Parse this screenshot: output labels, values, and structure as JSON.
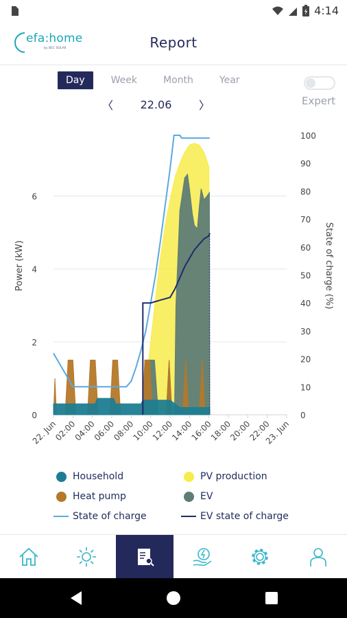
{
  "status": {
    "time": "4:14"
  },
  "header": {
    "logo_text": "efa:home",
    "logo_sub": "by BEC SOLAR",
    "title": "Report"
  },
  "tabs": [
    {
      "label": "Day",
      "active": true
    },
    {
      "label": "Week",
      "active": false
    },
    {
      "label": "Month",
      "active": false
    },
    {
      "label": "Year",
      "active": false
    }
  ],
  "expert": {
    "label": "Expert",
    "enabled": false
  },
  "date_nav": {
    "date": "22.06",
    "prev": "〈",
    "next": "〉"
  },
  "chart_data": {
    "type": "area",
    "ylabel_left": "Power (kW)",
    "ylabel_right": "State of charge (%)",
    "yticks_left": [
      "0",
      "2",
      "4",
      "6"
    ],
    "yticks_right": [
      "0",
      "10",
      "20",
      "30",
      "40",
      "50",
      "60",
      "70",
      "80",
      "90",
      "100"
    ],
    "xticks": [
      "22. Jun",
      "02:00",
      "04:00",
      "06:00",
      "08:00",
      "10:00",
      "12:00",
      "14:00",
      "16:00",
      "18:00",
      "20:00",
      "22:00",
      "23. Jun"
    ],
    "ylim_left": [
      0,
      7.8
    ],
    "ylim_right": [
      0,
      100
    ],
    "xlim_hours": [
      0,
      24
    ],
    "series": [
      {
        "name": "PV production",
        "key": "pv",
        "color": "#f7ec4b",
        "axis": "left",
        "points": [
          [
            9,
            0
          ],
          [
            9.5,
            0.8
          ],
          [
            10,
            2
          ],
          [
            10.5,
            3.2
          ],
          [
            11,
            4.3
          ],
          [
            11.5,
            5.2
          ],
          [
            12,
            5.9
          ],
          [
            12.5,
            6.5
          ],
          [
            13,
            6.9
          ],
          [
            13.5,
            7.2
          ],
          [
            14,
            7.4
          ],
          [
            14.5,
            7.45
          ],
          [
            15,
            7.4
          ],
          [
            15.5,
            7.2
          ],
          [
            16,
            6.8
          ],
          [
            16.08,
            0
          ]
        ]
      },
      {
        "name": "EV",
        "key": "ev",
        "color": "#5f7c76",
        "axis": "left",
        "points": [
          [
            9.3,
            0
          ],
          [
            9.4,
            1.5
          ],
          [
            10,
            1.5
          ],
          [
            10.4,
            1.5
          ],
          [
            10.8,
            0
          ],
          [
            11.6,
            0
          ],
          [
            11.9,
            1.5
          ],
          [
            12.2,
            0
          ],
          [
            12.45,
            0
          ],
          [
            12.6,
            3
          ],
          [
            13,
            5.6
          ],
          [
            13.5,
            6.5
          ],
          [
            13.8,
            6.6
          ],
          [
            14,
            6.2
          ],
          [
            14.3,
            5.5
          ],
          [
            14.5,
            5.2
          ],
          [
            14.8,
            5.1
          ],
          [
            15,
            5.7
          ],
          [
            15.2,
            6.2
          ],
          [
            15.5,
            5.9
          ],
          [
            15.8,
            6
          ],
          [
            16.05,
            6.1
          ],
          [
            16.08,
            0
          ]
        ]
      },
      {
        "name": "Heat pump",
        "key": "hp",
        "color": "#b5782a",
        "axis": "left",
        "points": [
          [
            0,
            0
          ],
          [
            0.15,
            1
          ],
          [
            0.3,
            0
          ],
          [
            1.2,
            0
          ],
          [
            1.5,
            1.5
          ],
          [
            2,
            1.5
          ],
          [
            2.3,
            0
          ],
          [
            3.5,
            0
          ],
          [
            3.8,
            1.5
          ],
          [
            4.3,
            1.5
          ],
          [
            4.6,
            0
          ],
          [
            5.8,
            0
          ],
          [
            6.1,
            1.5
          ],
          [
            6.6,
            1.5
          ],
          [
            6.9,
            0
          ],
          [
            9.1,
            0
          ],
          [
            9.4,
            1.5
          ],
          [
            9.9,
            1.5
          ],
          [
            10.2,
            0
          ],
          [
            11.6,
            0
          ],
          [
            11.9,
            1.5
          ],
          [
            12.2,
            0
          ],
          [
            13.3,
            0
          ],
          [
            13.6,
            1.5
          ],
          [
            13.9,
            0
          ],
          [
            15,
            0
          ],
          [
            15.3,
            1.5
          ],
          [
            15.6,
            0
          ],
          [
            16.08,
            0
          ]
        ]
      },
      {
        "name": "Household",
        "key": "hh",
        "color": "#1e7d92",
        "axis": "left",
        "points": [
          [
            0,
            0.3
          ],
          [
            4.3,
            0.3
          ],
          [
            4.5,
            0.45
          ],
          [
            6.2,
            0.45
          ],
          [
            6.4,
            0.3
          ],
          [
            9,
            0.3
          ],
          [
            9.2,
            0.4
          ],
          [
            12,
            0.4
          ],
          [
            13,
            0.2
          ],
          [
            16.08,
            0.2
          ],
          [
            16.08,
            0
          ]
        ]
      },
      {
        "name": "State of charge",
        "key": "soc",
        "color": "#5aa9e0",
        "axis": "right",
        "points": [
          [
            0,
            22
          ],
          [
            0.5,
            19
          ],
          [
            1,
            16
          ],
          [
            1.5,
            13
          ],
          [
            2,
            10
          ],
          [
            7.5,
            10
          ],
          [
            8,
            12
          ],
          [
            8.5,
            17
          ],
          [
            9,
            23
          ],
          [
            9.5,
            30
          ],
          [
            10,
            40
          ],
          [
            10.5,
            50
          ],
          [
            11,
            62
          ],
          [
            11.5,
            75
          ],
          [
            12,
            88
          ],
          [
            12.4,
            100
          ],
          [
            13,
            100
          ],
          [
            13.2,
            99
          ],
          [
            16.08,
            99
          ]
        ]
      },
      {
        "name": "EV state of charge",
        "key": "evsoc",
        "color": "#1f2a6e",
        "axis": "right",
        "points": [
          [
            9.2,
            0
          ],
          [
            9.2,
            40
          ],
          [
            10,
            40
          ],
          [
            11,
            41
          ],
          [
            12,
            42
          ],
          [
            12.5,
            45
          ],
          [
            13,
            49
          ],
          [
            13.5,
            53
          ],
          [
            14,
            56
          ],
          [
            14.5,
            59
          ],
          [
            15,
            61
          ],
          [
            15.5,
            63
          ],
          [
            16,
            64
          ],
          [
            16.08,
            65
          ]
        ]
      }
    ]
  },
  "legend": [
    {
      "label": "Household",
      "style": "dot",
      "color": "#1e7d92"
    },
    {
      "label": "PV production",
      "style": "dot",
      "color": "#f7ec4b"
    },
    {
      "label": "Heat pump",
      "style": "dot",
      "color": "#b5782a"
    },
    {
      "label": "EV",
      "style": "dot",
      "color": "#5f7c76"
    },
    {
      "label": "State of charge",
      "style": "line",
      "color": "#5aa9e0"
    },
    {
      "label": "EV state of charge",
      "style": "line",
      "color": "#1f2a6e"
    }
  ],
  "nav": [
    {
      "name": "home-icon",
      "active": false
    },
    {
      "name": "sun-icon",
      "active": false
    },
    {
      "name": "report-icon",
      "active": true
    },
    {
      "name": "energy-hand-icon",
      "active": false
    },
    {
      "name": "settings-icon",
      "active": false
    },
    {
      "name": "user-icon",
      "active": false
    }
  ],
  "colors": {
    "accent": "#24295c",
    "icon": "#35b6c8"
  }
}
